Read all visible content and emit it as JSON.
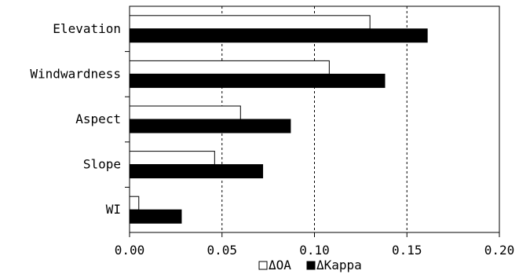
{
  "chart_data": {
    "type": "bar",
    "orientation": "horizontal",
    "categories": [
      "Elevation",
      "Windwardness",
      "Aspect",
      "Slope",
      "WI"
    ],
    "series": [
      {
        "name": "ΔOA",
        "values": [
          0.13,
          0.108,
          0.06,
          0.046,
          0.005
        ],
        "color": "#ffffff"
      },
      {
        "name": "ΔKappa",
        "values": [
          0.161,
          0.138,
          0.087,
          0.072,
          0.028
        ],
        "color": "#000000"
      }
    ],
    "xlim": [
      0,
      0.2
    ],
    "xticks": [
      "0.00",
      "0.05",
      "0.10",
      "0.15",
      "0.20"
    ],
    "xtick_values": [
      0,
      0.05,
      0.1,
      0.15,
      0.2
    ],
    "grid": "vertical-dashed",
    "legend": "bottom-center"
  }
}
